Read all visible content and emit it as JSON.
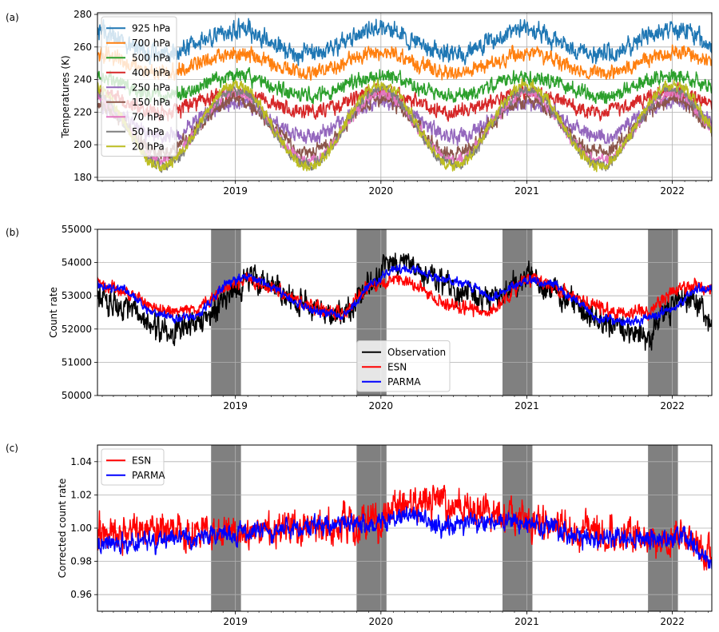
{
  "chart_data": [
    {
      "panel_label": "(a)",
      "type": "line",
      "ylabel": "Temperatures (K)",
      "xlabel": "",
      "x_range": [
        "2018-01-20",
        "2022-04-10"
      ],
      "ylim": [
        178,
        281
      ],
      "x_ticks": [
        {
          "date": "2019-01-01",
          "label": "2019"
        },
        {
          "date": "2020-01-01",
          "label": "2020"
        },
        {
          "date": "2021-01-01",
          "label": "2021"
        },
        {
          "date": "2022-01-01",
          "label": "2022"
        }
      ],
      "y_ticks": [
        180,
        200,
        220,
        240,
        260,
        280
      ],
      "grid": true,
      "legend_position": "upper-left",
      "series": [
        {
          "name": "925 hPa",
          "color": "#1f77b4",
          "winter_value": 255,
          "summer_value": 271,
          "peak_date": "2019-01-01",
          "noise": 5
        },
        {
          "name": "700 hPa",
          "color": "#ff7f0e",
          "winter_value": 244,
          "summer_value": 256,
          "peak_date": "2019-01-01",
          "noise": 4
        },
        {
          "name": "500 hPa",
          "color": "#2ca02c",
          "winter_value": 230,
          "summer_value": 242,
          "peak_date": "2019-01-01",
          "noise": 4
        },
        {
          "name": "400 hPa",
          "color": "#d62728",
          "winter_value": 220,
          "summer_value": 232,
          "peak_date": "2019-01-01",
          "noise": 4
        },
        {
          "name": "250 hPa",
          "color": "#9467bd",
          "winter_value": 205,
          "summer_value": 226,
          "peak_date": "2019-01-01",
          "noise": 4
        },
        {
          "name": "150 hPa",
          "color": "#8c564b",
          "winter_value": 195,
          "summer_value": 228,
          "peak_date": "2019-01-01",
          "noise": 4
        },
        {
          "name": "70 hPa",
          "color": "#e377c2",
          "winter_value": 190,
          "summer_value": 232,
          "peak_date": "2019-01-01",
          "noise": 3
        },
        {
          "name": "50 hPa",
          "color": "#7f7f7f",
          "winter_value": 188,
          "summer_value": 234,
          "peak_date": "2019-01-01",
          "noise": 3
        },
        {
          "name": "20 hPa",
          "color": "#bcbd22",
          "winter_value": 187,
          "summer_value": 237,
          "peak_date": "2019-01-01",
          "noise": 3
        }
      ]
    },
    {
      "panel_label": "(b)",
      "type": "line",
      "ylabel": "Count rate",
      "xlabel": "",
      "x_range": [
        "2018-01-20",
        "2022-04-10"
      ],
      "ylim": [
        50000,
        55000
      ],
      "x_ticks": [
        {
          "date": "2019-01-01",
          "label": "2019"
        },
        {
          "date": "2020-01-01",
          "label": "2020"
        },
        {
          "date": "2021-01-01",
          "label": "2021"
        },
        {
          "date": "2022-01-01",
          "label": "2022"
        }
      ],
      "y_ticks": [
        50000,
        51000,
        52000,
        53000,
        54000,
        55000
      ],
      "grid": true,
      "legend_position": "lower-center",
      "shaded_periods": [
        [
          "2018-11-01",
          "2019-01-15"
        ],
        [
          "2019-11-01",
          "2020-01-15"
        ],
        [
          "2020-11-01",
          "2021-01-15"
        ],
        [
          "2021-11-01",
          "2022-01-15"
        ]
      ],
      "shade_color": "#808080",
      "series": [
        {
          "name": "Observation",
          "color": "#000000",
          "points": [
            [
              "2018-01-20",
              53000
            ],
            [
              "2018-04-01",
              52600
            ],
            [
              "2018-06-01",
              52100
            ],
            [
              "2018-08-01",
              52000
            ],
            [
              "2018-10-01",
              52100
            ],
            [
              "2018-12-01",
              52900
            ],
            [
              "2019-02-01",
              53600
            ],
            [
              "2019-04-01",
              53300
            ],
            [
              "2019-06-01",
              52800
            ],
            [
              "2019-08-01",
              52500
            ],
            [
              "2019-10-01",
              52400
            ],
            [
              "2019-12-01",
              53400
            ],
            [
              "2020-02-01",
              54000
            ],
            [
              "2020-04-01",
              53700
            ],
            [
              "2020-06-01",
              53400
            ],
            [
              "2020-08-01",
              53100
            ],
            [
              "2020-10-01",
              52800
            ],
            [
              "2021-01-01",
              53600
            ],
            [
              "2021-03-01",
              53200
            ],
            [
              "2021-05-01",
              52700
            ],
            [
              "2021-07-01",
              52200
            ],
            [
              "2021-09-01",
              52000
            ],
            [
              "2021-11-01",
              51800
            ],
            [
              "2022-01-01",
              52700
            ],
            [
              "2022-03-01",
              53000
            ],
            [
              "2022-04-10",
              52000
            ]
          ],
          "noise": 350
        },
        {
          "name": "ESN",
          "color": "#ff0000",
          "points": [
            [
              "2018-01-20",
              53400
            ],
            [
              "2018-04-01",
              53100
            ],
            [
              "2018-06-01",
              52700
            ],
            [
              "2018-08-01",
              52500
            ],
            [
              "2018-10-01",
              52600
            ],
            [
              "2018-12-01",
              53200
            ],
            [
              "2019-02-01",
              53500
            ],
            [
              "2019-04-01",
              53200
            ],
            [
              "2019-06-01",
              52900
            ],
            [
              "2019-08-01",
              52600
            ],
            [
              "2019-10-01",
              52500
            ],
            [
              "2019-12-01",
              53300
            ],
            [
              "2020-02-01",
              53500
            ],
            [
              "2020-04-01",
              53300
            ],
            [
              "2020-06-01",
              52800
            ],
            [
              "2020-08-01",
              52600
            ],
            [
              "2020-10-01",
              52500
            ],
            [
              "2021-01-01",
              53500
            ],
            [
              "2021-03-01",
              53300
            ],
            [
              "2021-05-01",
              53000
            ],
            [
              "2021-07-01",
              52600
            ],
            [
              "2021-09-01",
              52500
            ],
            [
              "2021-11-01",
              52500
            ],
            [
              "2022-01-01",
              53100
            ],
            [
              "2022-03-01",
              53300
            ],
            [
              "2022-04-10",
              53200
            ]
          ],
          "noise": 180
        },
        {
          "name": "PARMA",
          "color": "#0000ff",
          "points": [
            [
              "2018-01-20",
              53300
            ],
            [
              "2018-04-01",
              53200
            ],
            [
              "2018-06-01",
              52500
            ],
            [
              "2018-08-01",
              52300
            ],
            [
              "2018-10-01",
              52400
            ],
            [
              "2018-12-01",
              53300
            ],
            [
              "2019-02-01",
              53600
            ],
            [
              "2019-04-01",
              53300
            ],
            [
              "2019-06-01",
              52800
            ],
            [
              "2019-08-01",
              52500
            ],
            [
              "2019-10-01",
              52400
            ],
            [
              "2019-12-01",
              53300
            ],
            [
              "2020-02-01",
              53800
            ],
            [
              "2020-04-01",
              53800
            ],
            [
              "2020-06-01",
              53500
            ],
            [
              "2020-08-01",
              53400
            ],
            [
              "2020-10-01",
              52900
            ],
            [
              "2021-01-01",
              53500
            ],
            [
              "2021-03-01",
              53400
            ],
            [
              "2021-05-01",
              52900
            ],
            [
              "2021-07-01",
              52300
            ],
            [
              "2021-09-01",
              52200
            ],
            [
              "2021-11-01",
              52300
            ],
            [
              "2022-01-01",
              52600
            ],
            [
              "2022-03-01",
              53200
            ],
            [
              "2022-04-10",
              53200
            ]
          ],
          "noise": 120
        }
      ]
    },
    {
      "panel_label": "(c)",
      "type": "line",
      "ylabel": "Corrected count rate",
      "xlabel": "",
      "x_range": [
        "2018-01-20",
        "2022-04-10"
      ],
      "ylim": [
        0.95,
        1.05
      ],
      "x_ticks": [
        {
          "date": "2019-01-01",
          "label": "2019"
        },
        {
          "date": "2020-01-01",
          "label": "2020"
        },
        {
          "date": "2021-01-01",
          "label": "2021"
        },
        {
          "date": "2022-01-01",
          "label": "2022"
        }
      ],
      "y_ticks": [
        0.96,
        0.98,
        1.0,
        1.02,
        1.04
      ],
      "y_tick_labels": [
        "0.96",
        "0.98",
        "1.00",
        "1.02",
        "1.04"
      ],
      "grid": true,
      "legend_position": "upper-left",
      "shaded_periods": [
        [
          "2018-11-01",
          "2019-01-15"
        ],
        [
          "2019-11-01",
          "2020-01-15"
        ],
        [
          "2020-11-01",
          "2021-01-15"
        ],
        [
          "2021-11-01",
          "2022-01-15"
        ]
      ],
      "shade_color": "#808080",
      "series": [
        {
          "name": "ESN",
          "color": "#ff0000",
          "points": [
            [
              "2018-01-20",
              0.997
            ],
            [
              "2018-06-01",
              0.998
            ],
            [
              "2019-01-01",
              0.996
            ],
            [
              "2019-06-01",
              1.0
            ],
            [
              "2020-01-01",
              1.005
            ],
            [
              "2020-03-01",
              1.014
            ],
            [
              "2020-06-01",
              1.016
            ],
            [
              "2020-09-01",
              1.012
            ],
            [
              "2021-01-01",
              1.004
            ],
            [
              "2021-06-01",
              0.998
            ],
            [
              "2021-11-01",
              0.992
            ],
            [
              "2022-02-01",
              0.994
            ],
            [
              "2022-04-10",
              0.985
            ]
          ],
          "noise": 0.009
        },
        {
          "name": "PARMA",
          "color": "#0000ff",
          "points": [
            [
              "2018-01-20",
              0.99
            ],
            [
              "2018-06-01",
              0.992
            ],
            [
              "2019-01-01",
              0.997
            ],
            [
              "2019-06-01",
              1.0
            ],
            [
              "2020-01-01",
              1.004
            ],
            [
              "2020-03-01",
              1.008
            ],
            [
              "2020-06-01",
              1.001
            ],
            [
              "2020-09-01",
              1.004
            ],
            [
              "2021-01-01",
              1.003
            ],
            [
              "2021-06-01",
              0.994
            ],
            [
              "2021-11-01",
              0.993
            ],
            [
              "2022-02-01",
              0.996
            ],
            [
              "2022-04-10",
              0.98
            ]
          ],
          "noise": 0.005
        }
      ]
    }
  ]
}
